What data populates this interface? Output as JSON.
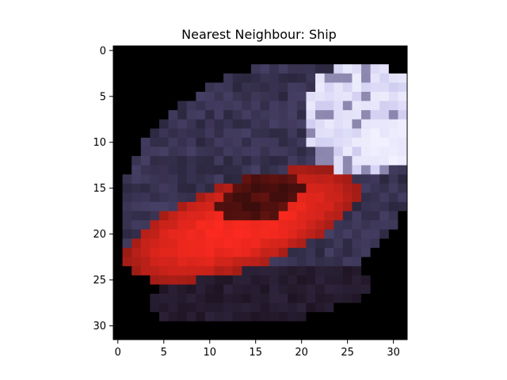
{
  "figure": {
    "title": "Nearest Neighbour: Ship"
  },
  "image": {
    "grid_size": [
      32,
      32
    ],
    "subject": "ship",
    "description": "Low-resolution 32x32 pixel image of a red and dark boat hull on black background with white/purple highlights",
    "palette": {
      "background": "#000000",
      "hull_red": "#ff2a1f",
      "hull_dark_red": "#8c1a14",
      "deck_purple": "#4e4670",
      "highlight_white": "#f2f2ff",
      "lavender": "#b7b2e6"
    }
  },
  "axes": {
    "x_ticks": [
      "0",
      "5",
      "10",
      "15",
      "20",
      "25",
      "30"
    ],
    "y_ticks": [
      "0",
      "5",
      "10",
      "15",
      "20",
      "25",
      "30"
    ]
  }
}
